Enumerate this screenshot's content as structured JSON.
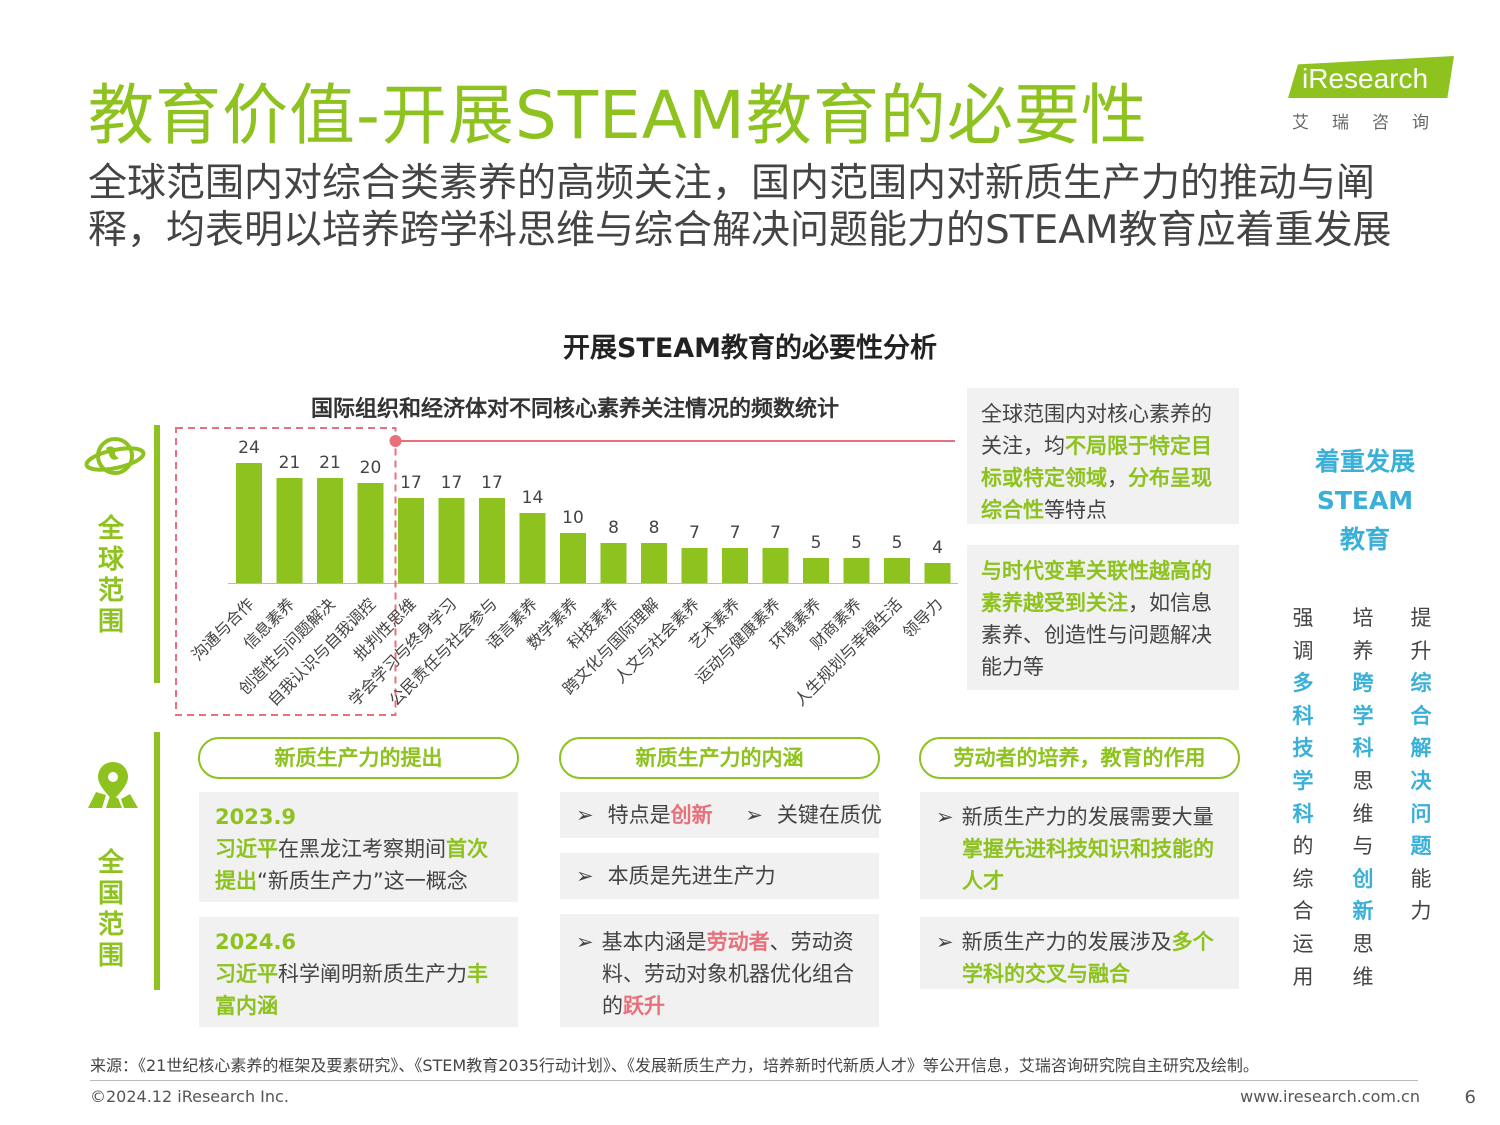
{
  "title": "教育价值-开展STEAM教育的必要性",
  "subtitle": "全球范围内对综合类素养的高频关注，国内范围内对新质生产力的推动与阐释，均表明以培养跨学科思维与综合解决问题能力的STEAM教育应着重发展",
  "logo": {
    "word": "iResearch",
    "sub": "艾瑞咨询"
  },
  "colors": {
    "accent": "#8dc21f",
    "highlight_blue": "#3ab0d8",
    "dashed_red": "#e8707a"
  },
  "section_heading": "开展STEAM教育的必要性分析",
  "side_labels": {
    "global": "全球范围",
    "national": "全国范围"
  },
  "icons": {
    "global": "globe-icon",
    "national": "map-pin-icon"
  },
  "chart_data": {
    "type": "bar",
    "title": "国际组织和经济体对不同核心素养关注情况的频数统计",
    "categories": [
      "沟通与合作",
      "信息素养",
      "创造性与问题解决",
      "自我认识与自我调控",
      "批判性思维",
      "学会学习与终身学习",
      "公民责任与社会参与",
      "语言素养",
      "数学素养",
      "科技素养",
      "跨文化与国际理解",
      "人文与社会素养",
      "艺术素养",
      "运动与健康素养",
      "环境素养",
      "财商素养",
      "人生规划与幸福生活",
      "领导力"
    ],
    "values": [
      24,
      21,
      21,
      20,
      17,
      17,
      17,
      14,
      10,
      8,
      8,
      7,
      7,
      7,
      5,
      5,
      5,
      4
    ],
    "highlighted_count": 4,
    "color": "#8dc21f"
  },
  "global_boxes": {
    "box1": {
      "t1": "全球范围内对核心素养的关注，均",
      "h1": "不局限于特定目标或特定领域",
      "t2": "，",
      "h2": "分布呈现综合性",
      "t3": "等特点"
    },
    "box2": {
      "h1": "与时代变革关联性越高的素养越受到关注",
      "t1": "，如信息素养、创造性与问题解决能力等"
    }
  },
  "national": {
    "pills": [
      "新质生产力的提出",
      "新质生产力的内涵",
      "劳动者的培养，教育的作用"
    ],
    "col1": [
      {
        "date": "2023.9",
        "h1": "习近平",
        "t1": "在黑龙江考察期间",
        "h2": "首次提出",
        "t2": "“新质生产力”这一概念"
      },
      {
        "date": "2024.6",
        "h1": "习近平",
        "t1": "科学阐明新质生产力",
        "h2": "丰富内涵",
        "t2": ""
      }
    ],
    "col2": {
      "row1a_t": "特点是",
      "row1a_h": "创新",
      "row1b": "关键在质优",
      "row2": "本质是先进生产力",
      "row3_t1": "基本内涵是",
      "row3_h1": "劳动者",
      "row3_t2": "、劳动资料、劳动对象机器优化组合的",
      "row3_h2": "跃升"
    },
    "col3": [
      {
        "t1": "新质生产力的发展需要大量",
        "h1": "掌握先进科技知识和技能的人才"
      },
      {
        "t1": "新质生产力的发展涉及",
        "h1": "多个学科的交叉与融合"
      }
    ]
  },
  "conclusion": {
    "heading": [
      "着重发展",
      "STEAM",
      "教育"
    ],
    "columns": [
      [
        {
          "c": "强",
          "h": false
        },
        {
          "c": "调",
          "h": false
        },
        {
          "c": "多",
          "h": true
        },
        {
          "c": "科",
          "h": true
        },
        {
          "c": "技",
          "h": true
        },
        {
          "c": "学",
          "h": true
        },
        {
          "c": "科",
          "h": true
        },
        {
          "c": "的",
          "h": false
        },
        {
          "c": "综",
          "h": false
        },
        {
          "c": "合",
          "h": false
        },
        {
          "c": "运",
          "h": false
        },
        {
          "c": "用",
          "h": false
        }
      ],
      [
        {
          "c": "培",
          "h": false
        },
        {
          "c": "养",
          "h": false
        },
        {
          "c": "跨",
          "h": true
        },
        {
          "c": "学",
          "h": true
        },
        {
          "c": "科",
          "h": true
        },
        {
          "c": "思",
          "h": false
        },
        {
          "c": "维",
          "h": false
        },
        {
          "c": "与",
          "h": false
        },
        {
          "c": "创",
          "h": true
        },
        {
          "c": "新",
          "h": true
        },
        {
          "c": "思",
          "h": false
        },
        {
          "c": "维",
          "h": false
        }
      ],
      [
        {
          "c": "提",
          "h": false
        },
        {
          "c": "升",
          "h": false
        },
        {
          "c": "综",
          "h": true
        },
        {
          "c": "合",
          "h": true
        },
        {
          "c": "解",
          "h": true
        },
        {
          "c": "决",
          "h": true
        },
        {
          "c": "问",
          "h": true
        },
        {
          "c": "题",
          "h": true
        },
        {
          "c": "能",
          "h": false
        },
        {
          "c": "力",
          "h": false
        }
      ]
    ]
  },
  "footer": {
    "source": "来源：《21世纪核心素养的框架及要素研究》、《STEM教育2035行动计划》、《发展新质生产力，培养新时代新质人才》等公开信息，艾瑞咨询研究院自主研究及绘制。",
    "copyright": "©2024.12 iResearch Inc.",
    "url": "www.iresearch.com.cn",
    "page": "6"
  }
}
